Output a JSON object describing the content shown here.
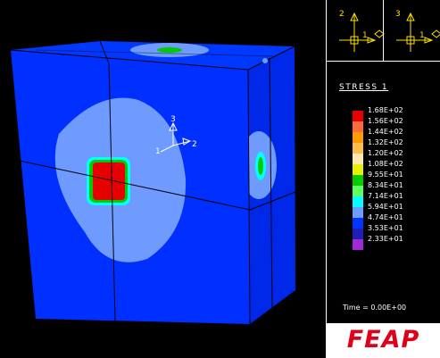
{
  "viewport": {
    "triad_labels": {
      "x": "1",
      "y": "2",
      "z": "3"
    }
  },
  "panel": {
    "view_triad_left": {
      "up_label": "2",
      "right_label": "1"
    },
    "view_triad_right": {
      "up_label": "3",
      "right_label": "1"
    },
    "title": "STRESS 1",
    "legend": [
      {
        "label": "1.68E+02",
        "color": "#e60000"
      },
      {
        "label": "1.56E+02",
        "color": "#ff6a3c"
      },
      {
        "label": "1.44E+02",
        "color": "#ff9a00"
      },
      {
        "label": "1.32E+02",
        "color": "#ffbe4a"
      },
      {
        "label": "1.20E+02",
        "color": "#ffe7b0"
      },
      {
        "label": "1.08E+02",
        "color": "#e6f000"
      },
      {
        "label": "9.55E+01",
        "color": "#00cc00"
      },
      {
        "label": "8.34E+01",
        "color": "#5cff5c"
      },
      {
        "label": "7.14E+01",
        "color": "#00ffff"
      },
      {
        "label": "5.94E+01",
        "color": "#6f9bff"
      },
      {
        "label": "4.74E+01",
        "color": "#0035ff"
      },
      {
        "label": "3.53E+01",
        "color": "#1f1fb8"
      },
      {
        "label": "2.33E+01",
        "color": "#a02bd6"
      }
    ],
    "time": "Time = 0.00E+00",
    "brand": "FEAP"
  },
  "colors": {
    "background": "#000000",
    "cube_front": "#0030ff",
    "cube_side": "#0028e8",
    "cube_top": "#0038ff",
    "contour_light": "#6f9bff",
    "contour_cyan": "#00ffff",
    "contour_red": "#e60000",
    "triad_yellow": "#ffe000",
    "brand_red": "#e0001a"
  }
}
